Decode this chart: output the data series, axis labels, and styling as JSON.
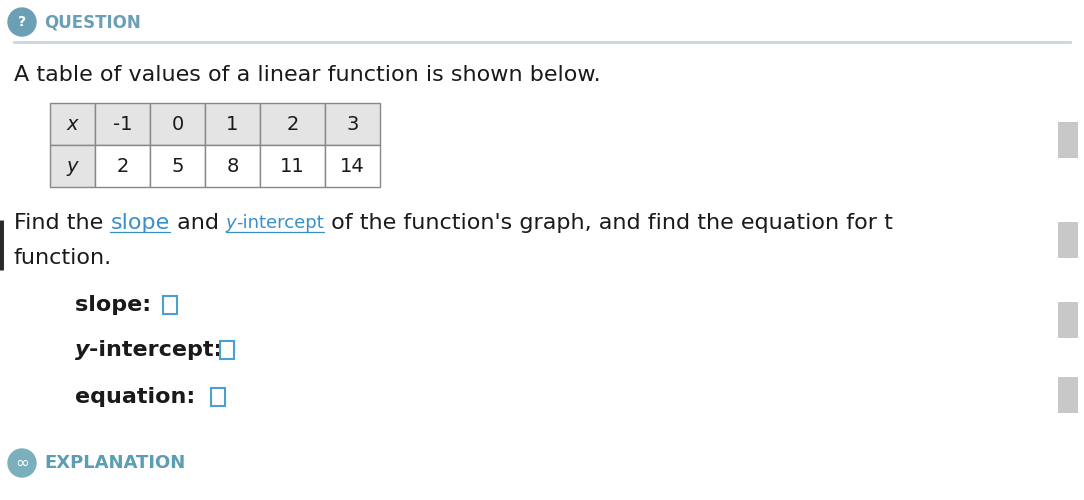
{
  "bg_color": "#ffffff",
  "question_icon_color": "#6a9fb5",
  "question_icon_text": "?",
  "question_label": "QUESTION",
  "question_label_color": "#6a9fb5",
  "divider_color": "#c8d8dc",
  "main_text": "A table of values of a linear function is shown below.",
  "main_text_color": "#1a1a1a",
  "x_values": [
    "-1",
    "0",
    "1",
    "2",
    "3"
  ],
  "y_values": [
    "2",
    "5",
    "8",
    "11",
    "14"
  ],
  "x_label": "x",
  "y_label": "y",
  "table_header_bg": "#e4e4e4",
  "table_border_color": "#888888",
  "input_box_color": "#4a9fd4",
  "label_color": "#1a1a1a",
  "explanation_text": "EXPLANATION",
  "explanation_color": "#5b9db5",
  "explanation_icon_bg": "#7ab0bc",
  "scroll_btn_bg": "#c8c8c8",
  "left_bar_color": "#2a2a2a",
  "slope_color": "#3a8fc9",
  "yint_color": "#3a8fc9"
}
